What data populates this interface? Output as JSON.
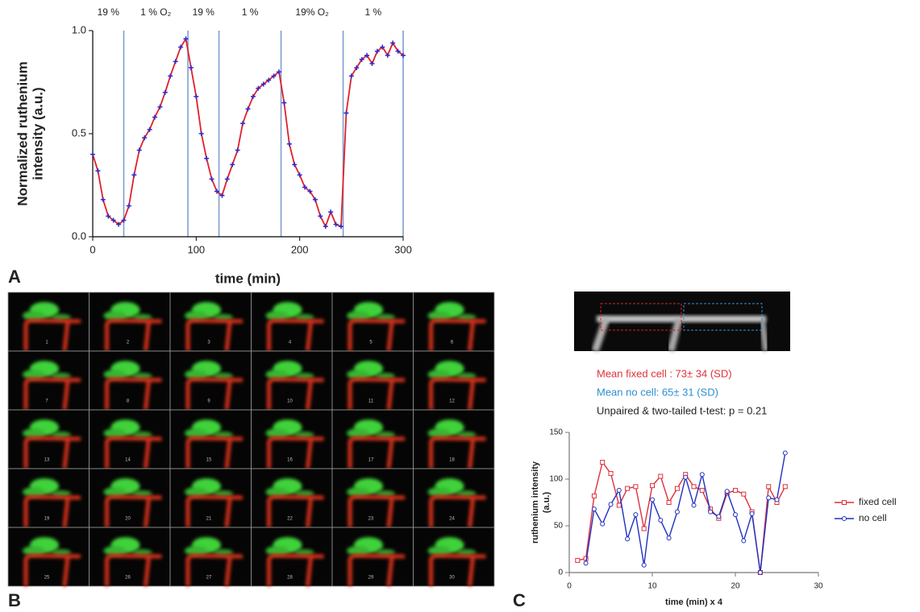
{
  "chart_data": [
    {
      "type": "line",
      "ylabel": [
        "Normalized ruthenium",
        "intensity (a.u.)"
      ],
      "xlabel": "time (min)",
      "annotations": [
        "19 %",
        "1 % O₂",
        "19 %",
        "1 %",
        "19% O₂",
        "1 %"
      ],
      "reference_lines": [
        30,
        92,
        122,
        182,
        242,
        300
      ],
      "reference_color": "#7f9fd0",
      "xlim": [
        0,
        300
      ],
      "xticks": [
        0,
        100,
        200,
        300
      ],
      "ylim": [
        0,
        1
      ],
      "yticks": [
        {
          "value": 0,
          "label": "0.0"
        },
        {
          "value": 0.5,
          "label": "0.5"
        },
        {
          "value": 1,
          "label": "1.0"
        }
      ],
      "x": [
        0,
        5,
        10,
        15,
        20,
        25,
        30,
        35,
        40,
        45,
        50,
        55,
        60,
        65,
        70,
        75,
        80,
        85,
        90,
        95,
        100,
        105,
        110,
        115,
        120,
        125,
        130,
        135,
        140,
        145,
        150,
        155,
        160,
        165,
        170,
        175,
        180,
        185,
        190,
        195,
        200,
        205,
        210,
        215,
        220,
        225,
        230,
        235,
        240,
        245,
        250,
        255,
        260,
        265,
        270,
        275,
        280,
        285,
        290,
        295,
        300
      ],
      "series": [
        {
          "color": "#e0202a",
          "marker": "plus",
          "marker_color": "#2a2ad0",
          "values": [
            0.4,
            0.32,
            0.18,
            0.1,
            0.08,
            0.06,
            0.08,
            0.15,
            0.3,
            0.42,
            0.48,
            0.52,
            0.58,
            0.63,
            0.7,
            0.78,
            0.85,
            0.92,
            0.96,
            0.82,
            0.68,
            0.5,
            0.38,
            0.28,
            0.22,
            0.2,
            0.28,
            0.35,
            0.42,
            0.55,
            0.62,
            0.68,
            0.72,
            0.74,
            0.76,
            0.78,
            0.8,
            0.65,
            0.45,
            0.35,
            0.3,
            0.24,
            0.22,
            0.18,
            0.1,
            0.05,
            0.12,
            0.06,
            0.05,
            0.6,
            0.78,
            0.82,
            0.86,
            0.88,
            0.84,
            0.9,
            0.92,
            0.88,
            0.94,
            0.9,
            0.88
          ]
        }
      ]
    },
    {
      "type": "line",
      "ylabel": [
        "ruthenium intensity",
        "(a.u.)"
      ],
      "xlabel": "time (min) x 4",
      "stats": [
        {
          "text": "Mean fixed cell : 73± 34 (SD)",
          "color": "#e0303a"
        },
        {
          "text": "Mean no cell: 65± 31 (SD)",
          "color": "#2e8fcf"
        },
        {
          "text": "Unpaired &  two-tailed t-test: p = 0.21",
          "color": "#222222"
        }
      ],
      "xlim": [
        0,
        30
      ],
      "xticks": [
        0,
        10,
        20,
        30
      ],
      "ylim": [
        0,
        150
      ],
      "yticks": [
        0,
        50,
        100,
        150
      ],
      "x": [
        1,
        2,
        3,
        4,
        5,
        6,
        7,
        8,
        9,
        10,
        11,
        12,
        13,
        14,
        15,
        16,
        17,
        18,
        19,
        20,
        21,
        22,
        23,
        24,
        25,
        26
      ],
      "series": [
        {
          "name": "fixed cell",
          "color": "#e0303a",
          "marker": "square",
          "values": [
            13,
            15,
            82,
            118,
            106,
            72,
            90,
            92,
            47,
            93,
            103,
            75,
            90,
            105,
            92,
            88,
            68,
            58,
            85,
            88,
            84,
            65,
            0,
            92,
            75,
            92
          ]
        },
        {
          "name": "no cell",
          "color": "#2030c0",
          "marker": "circle",
          "values": [
            null,
            10,
            68,
            52,
            73,
            88,
            36,
            62,
            8,
            78,
            56,
            37,
            65,
            102,
            72,
            105,
            65,
            60,
            87,
            62,
            34,
            63,
            0,
            80,
            78,
            128
          ]
        }
      ]
    }
  ],
  "panel_labels": [
    "A",
    "B",
    "C"
  ],
  "frames": [
    1,
    2,
    3,
    4,
    5,
    6,
    7,
    8,
    9,
    10,
    11,
    12,
    13,
    14,
    15,
    16,
    17,
    18,
    19,
    20,
    21,
    22,
    23,
    24,
    25,
    26,
    27,
    28,
    29,
    30
  ]
}
